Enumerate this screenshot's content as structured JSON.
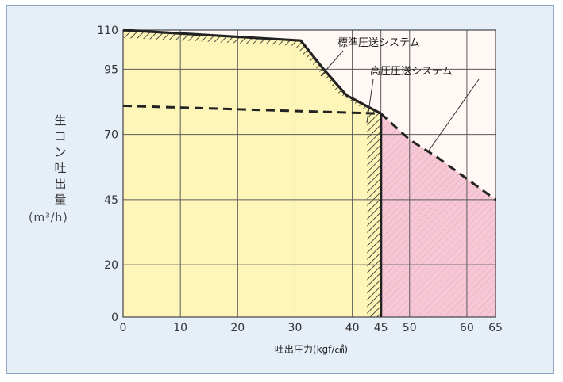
{
  "chart_data": {
    "type": "area",
    "xlabel": "吐出圧力(kgf/㎠)",
    "ylabel": "生コン吐出量",
    "yunit": "(m³/h)",
    "xlim": [
      0,
      65
    ],
    "ylim": [
      0,
      110
    ],
    "xticks": [
      0,
      10,
      20,
      30,
      40,
      45,
      50,
      60,
      65
    ],
    "yticks": [
      0,
      20,
      45,
      70,
      95,
      110
    ],
    "grid": true,
    "series": [
      {
        "name": "標準圧送システム",
        "x": [
          0,
          31,
          35,
          39,
          45,
          45
        ],
        "y": [
          110,
          106,
          95,
          85,
          78,
          0
        ],
        "fill": "#fdf6b8"
      },
      {
        "name": "高圧圧送システム",
        "x": [
          0,
          45,
          50,
          55,
          60,
          65
        ],
        "y": [
          81,
          78,
          68,
          61,
          53,
          45
        ],
        "fill": "#f6c8d6"
      }
    ]
  }
}
